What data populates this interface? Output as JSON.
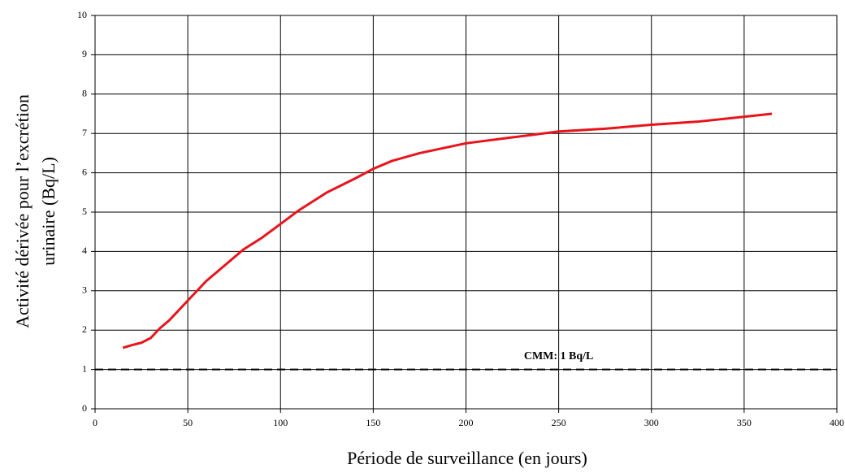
{
  "chart_data": {
    "type": "line",
    "x_label": "Période de surveillance (en jours)",
    "y_label": [
      "Activité dérivée pour l’excrétion",
      "urinaire (Bq/L)"
    ],
    "xlim": [
      0,
      400
    ],
    "xticks": [
      0,
      50,
      100,
      150,
      200,
      250,
      300,
      350,
      400
    ],
    "ylim": [
      0,
      10
    ],
    "yticks": [
      0,
      1,
      2,
      3,
      4,
      5,
      6,
      7,
      8,
      9,
      10
    ],
    "grid": true,
    "series": [
      {
        "color": "#e8141c",
        "x": [
          15,
          20,
          25,
          30,
          35,
          40,
          50,
          60,
          70,
          80,
          90,
          100,
          110,
          125,
          140,
          150,
          160,
          175,
          200,
          225,
          250,
          275,
          300,
          325,
          365
        ],
        "values": [
          1.55,
          1.62,
          1.68,
          1.8,
          2.05,
          2.25,
          2.75,
          3.25,
          3.65,
          4.05,
          4.35,
          4.7,
          5.05,
          5.5,
          5.85,
          6.1,
          6.3,
          6.5,
          6.75,
          6.9,
          7.05,
          7.12,
          7.22,
          7.3,
          7.5
        ]
      }
    ],
    "reference_line": {
      "value": 1,
      "label": "CMM: 1 Bq/L",
      "color": "#000000",
      "style": "dashed"
    }
  }
}
